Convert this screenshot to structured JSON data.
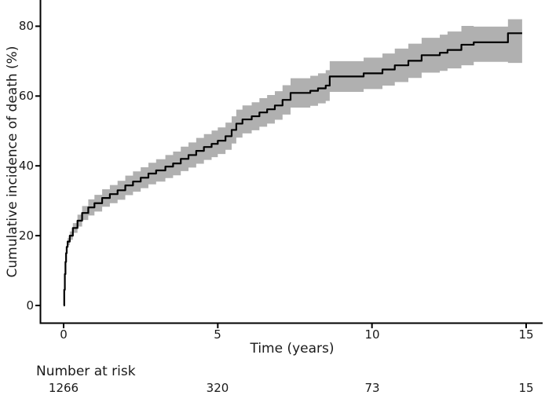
{
  "colors": {
    "curve": "#000000",
    "confidence_band": "#b0b0b0",
    "axis": "#000000",
    "text": "#1a1a1a",
    "background": "#ffffff"
  },
  "risk_table": {
    "title": "Number at risk",
    "times": [
      0,
      5,
      10,
      15
    ],
    "values": [
      "1266",
      "320",
      "73",
      "15"
    ]
  },
  "chart_data": {
    "type": "line",
    "subtype": "step-cumulative-incidence-with-ci-ribbon",
    "title": "",
    "xlabel": "Time (years)",
    "ylabel": "Cumulative incidence of death (%)",
    "xlim": [
      0,
      15.6
    ],
    "ylim": [
      0,
      86
    ],
    "x_ticks": [
      0,
      5,
      10,
      15
    ],
    "x_tick_labels": [
      "0",
      "5",
      "10",
      "15"
    ],
    "y_ticks": [
      0,
      20,
      40,
      60,
      80
    ],
    "y_tick_labels": [
      "0",
      "20",
      "40",
      "60",
      "80"
    ],
    "grid": false,
    "legend": "none",
    "series": [
      {
        "name": "Cumulative incidence of death",
        "color": "#000000",
        "band_color": "#b0b0b0",
        "points": [
          {
            "t": 0.0,
            "est": 0.0,
            "lo": 0.0,
            "hi": 0.0
          },
          {
            "t": 0.02,
            "est": 4.5,
            "lo": 4.5,
            "hi": 4.5
          },
          {
            "t": 0.04,
            "est": 9.0,
            "lo": 9.0,
            "hi": 9.0
          },
          {
            "t": 0.06,
            "est": 12.5,
            "lo": 12.2,
            "hi": 12.8
          },
          {
            "t": 0.08,
            "est": 15.0,
            "lo": 14.5,
            "hi": 15.5
          },
          {
            "t": 0.1,
            "est": 16.8,
            "lo": 16.0,
            "hi": 17.6
          },
          {
            "t": 0.13,
            "est": 18.3,
            "lo": 17.3,
            "hi": 19.3
          },
          {
            "t": 0.2,
            "est": 20.0,
            "lo": 18.8,
            "hi": 21.2
          },
          {
            "t": 0.3,
            "est": 22.2,
            "lo": 20.8,
            "hi": 23.6
          },
          {
            "t": 0.45,
            "est": 24.3,
            "lo": 22.6,
            "hi": 26.0
          },
          {
            "t": 0.6,
            "est": 26.5,
            "lo": 24.5,
            "hi": 28.5
          },
          {
            "t": 0.8,
            "est": 28.1,
            "lo": 25.8,
            "hi": 30.4
          },
          {
            "t": 1.0,
            "est": 29.3,
            "lo": 26.9,
            "hi": 31.7
          },
          {
            "t": 1.25,
            "est": 30.8,
            "lo": 28.3,
            "hi": 33.3
          },
          {
            "t": 1.5,
            "est": 31.9,
            "lo": 29.3,
            "hi": 34.5
          },
          {
            "t": 1.75,
            "est": 33.0,
            "lo": 30.3,
            "hi": 35.7
          },
          {
            "t": 2.0,
            "est": 34.4,
            "lo": 31.6,
            "hi": 37.2
          },
          {
            "t": 2.25,
            "est": 35.5,
            "lo": 32.6,
            "hi": 38.4
          },
          {
            "t": 2.5,
            "est": 36.6,
            "lo": 33.6,
            "hi": 39.6
          },
          {
            "t": 2.75,
            "est": 37.8,
            "lo": 34.7,
            "hi": 40.9
          },
          {
            "t": 3.0,
            "est": 38.7,
            "lo": 35.5,
            "hi": 41.9
          },
          {
            "t": 3.3,
            "est": 39.8,
            "lo": 36.5,
            "hi": 43.1
          },
          {
            "t": 3.55,
            "est": 40.7,
            "lo": 37.3,
            "hi": 44.1
          },
          {
            "t": 3.8,
            "est": 42.0,
            "lo": 38.5,
            "hi": 45.5
          },
          {
            "t": 4.05,
            "est": 43.1,
            "lo": 39.5,
            "hi": 46.7
          },
          {
            "t": 4.3,
            "est": 44.3,
            "lo": 40.6,
            "hi": 48.0
          },
          {
            "t": 4.55,
            "est": 45.4,
            "lo": 41.7,
            "hi": 49.1
          },
          {
            "t": 4.8,
            "est": 46.3,
            "lo": 42.5,
            "hi": 50.1
          },
          {
            "t": 5.0,
            "est": 47.2,
            "lo": 43.4,
            "hi": 51.0
          },
          {
            "t": 5.25,
            "est": 48.5,
            "lo": 44.6,
            "hi": 52.4
          },
          {
            "t": 5.45,
            "est": 50.3,
            "lo": 46.4,
            "hi": 54.2
          },
          {
            "t": 5.6,
            "est": 52.1,
            "lo": 48.1,
            "hi": 56.1
          },
          {
            "t": 5.8,
            "est": 53.3,
            "lo": 49.3,
            "hi": 57.3
          },
          {
            "t": 6.1,
            "est": 54.2,
            "lo": 50.2,
            "hi": 58.2
          },
          {
            "t": 6.35,
            "est": 55.3,
            "lo": 51.2,
            "hi": 59.4
          },
          {
            "t": 6.6,
            "est": 56.2,
            "lo": 52.1,
            "hi": 60.3
          },
          {
            "t": 6.85,
            "est": 57.3,
            "lo": 53.2,
            "hi": 61.4
          },
          {
            "t": 7.1,
            "est": 58.9,
            "lo": 54.7,
            "hi": 63.1
          },
          {
            "t": 7.36,
            "est": 60.9,
            "lo": 56.7,
            "hi": 65.1
          },
          {
            "t": 8.0,
            "est": 61.5,
            "lo": 57.2,
            "hi": 65.8
          },
          {
            "t": 8.25,
            "est": 62.2,
            "lo": 57.9,
            "hi": 66.5
          },
          {
            "t": 8.5,
            "est": 63.0,
            "lo": 58.6,
            "hi": 67.4
          },
          {
            "t": 8.63,
            "est": 65.6,
            "lo": 61.2,
            "hi": 70.0
          },
          {
            "t": 9.73,
            "est": 66.5,
            "lo": 62.0,
            "hi": 71.0
          },
          {
            "t": 10.34,
            "est": 67.6,
            "lo": 63.0,
            "hi": 72.2
          },
          {
            "t": 10.74,
            "est": 68.8,
            "lo": 64.0,
            "hi": 73.6
          },
          {
            "t": 11.18,
            "est": 70.1,
            "lo": 65.2,
            "hi": 75.0
          },
          {
            "t": 11.61,
            "est": 71.7,
            "lo": 66.7,
            "hi": 76.7
          },
          {
            "t": 12.2,
            "est": 72.4,
            "lo": 67.2,
            "hi": 77.6
          },
          {
            "t": 12.45,
            "est": 73.2,
            "lo": 67.9,
            "hi": 78.5
          },
          {
            "t": 12.9,
            "est": 74.7,
            "lo": 68.8,
            "hi": 80.1
          },
          {
            "t": 13.3,
            "est": 75.4,
            "lo": 69.8,
            "hi": 79.9
          },
          {
            "t": 14.41,
            "est": 78.0,
            "lo": 69.5,
            "hi": 82.0
          },
          {
            "t": 14.87,
            "est": 78.0,
            "lo": 69.5,
            "hi": 82.0
          }
        ]
      }
    ]
  }
}
